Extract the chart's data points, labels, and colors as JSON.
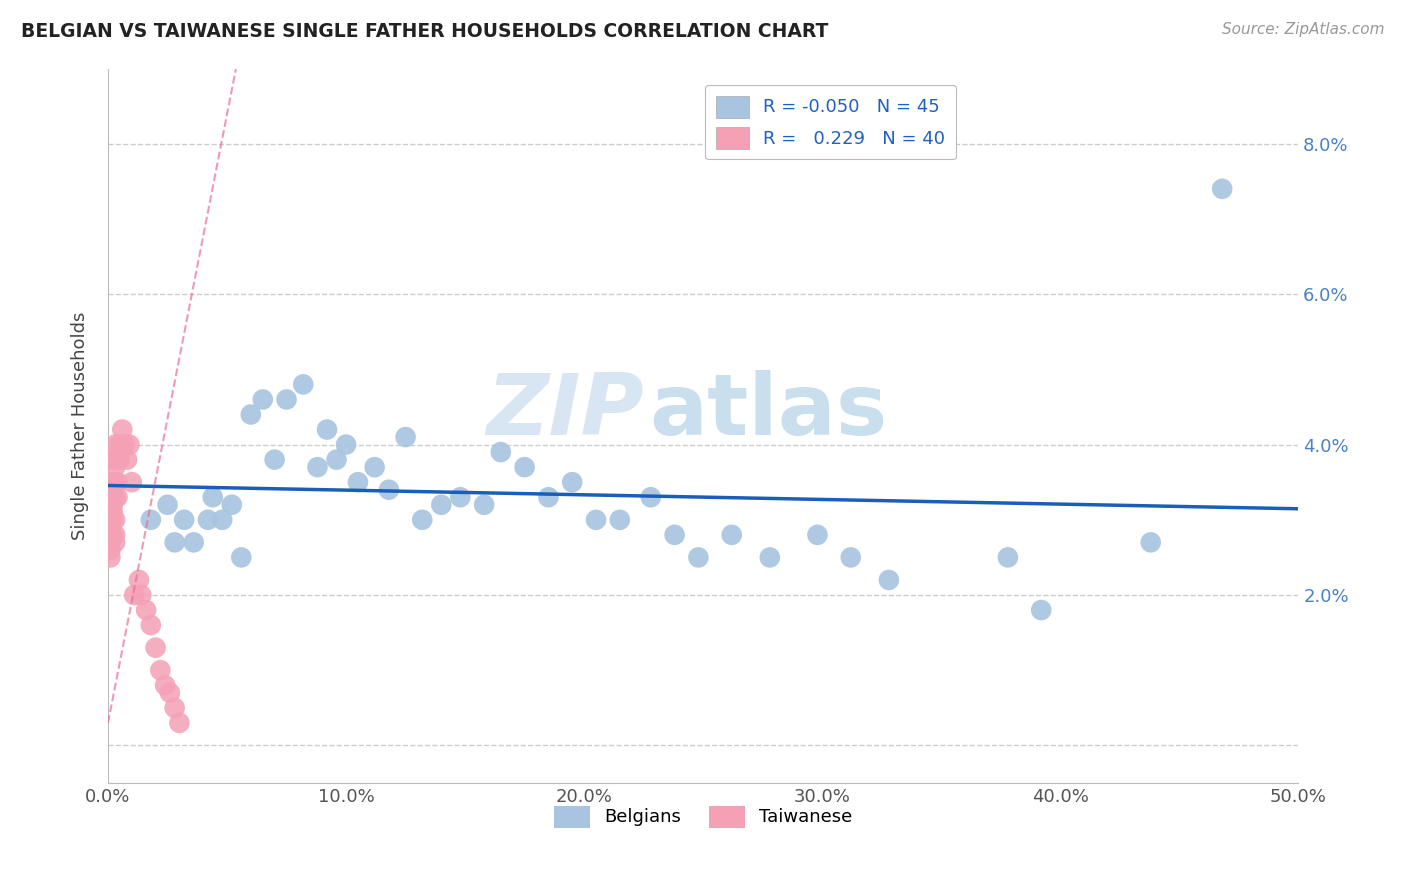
{
  "title": "BELGIAN VS TAIWANESE SINGLE FATHER HOUSEHOLDS CORRELATION CHART",
  "source": "Source: ZipAtlas.com",
  "ylabel": "Single Father Households",
  "xlim": [
    0.0,
    0.5
  ],
  "ylim": [
    -0.005,
    0.09
  ],
  "xticks": [
    0.0,
    0.1,
    0.2,
    0.3,
    0.4,
    0.5
  ],
  "xtick_labels": [
    "0.0%",
    "10.0%",
    "20.0%",
    "30.0%",
    "40.0%",
    "50.0%"
  ],
  "yticks": [
    0.0,
    0.02,
    0.04,
    0.06,
    0.08
  ],
  "ytick_labels_right": [
    "",
    "2.0%",
    "4.0%",
    "6.0%",
    "8.0%"
  ],
  "legend_R_blue": "-0.050",
  "legend_N_blue": "45",
  "legend_R_pink": "0.229",
  "legend_N_pink": "40",
  "blue_color": "#a8c4e0",
  "pink_color": "#f4a0b5",
  "trend_blue_color": "#1a5eb8",
  "trend_pink_color": "#e87090",
  "watermark_zip": "ZIP",
  "watermark_atlas": "atlas",
  "background_color": "#ffffff",
  "belgians_x": [
    0.018,
    0.025,
    0.028,
    0.032,
    0.036,
    0.042,
    0.044,
    0.048,
    0.052,
    0.056,
    0.06,
    0.065,
    0.07,
    0.075,
    0.082,
    0.088,
    0.092,
    0.096,
    0.1,
    0.105,
    0.112,
    0.118,
    0.125,
    0.132,
    0.14,
    0.148,
    0.158,
    0.165,
    0.175,
    0.185,
    0.195,
    0.205,
    0.215,
    0.228,
    0.238,
    0.248,
    0.262,
    0.278,
    0.298,
    0.312,
    0.328,
    0.378,
    0.392,
    0.438,
    0.468
  ],
  "belgians_y": [
    0.03,
    0.032,
    0.027,
    0.03,
    0.027,
    0.03,
    0.033,
    0.03,
    0.032,
    0.025,
    0.044,
    0.046,
    0.038,
    0.046,
    0.048,
    0.037,
    0.042,
    0.038,
    0.04,
    0.035,
    0.037,
    0.034,
    0.041,
    0.03,
    0.032,
    0.033,
    0.032,
    0.039,
    0.037,
    0.033,
    0.035,
    0.03,
    0.03,
    0.033,
    0.028,
    0.025,
    0.028,
    0.025,
    0.028,
    0.025,
    0.022,
    0.025,
    0.018,
    0.027,
    0.074
  ],
  "taiwanese_x": [
    0.001,
    0.001,
    0.001,
    0.001,
    0.001,
    0.002,
    0.002,
    0.002,
    0.002,
    0.002,
    0.002,
    0.003,
    0.003,
    0.003,
    0.003,
    0.003,
    0.003,
    0.003,
    0.003,
    0.004,
    0.004,
    0.004,
    0.005,
    0.005,
    0.006,
    0.007,
    0.008,
    0.009,
    0.01,
    0.011,
    0.013,
    0.014,
    0.016,
    0.018,
    0.02,
    0.022,
    0.024,
    0.026,
    0.028,
    0.03
  ],
  "taiwanese_y": [
    0.025,
    0.026,
    0.027,
    0.028,
    0.03,
    0.031,
    0.028,
    0.03,
    0.032,
    0.035,
    0.038,
    0.033,
    0.035,
    0.037,
    0.038,
    0.04,
    0.03,
    0.028,
    0.027,
    0.033,
    0.035,
    0.038,
    0.038,
    0.04,
    0.042,
    0.04,
    0.038,
    0.04,
    0.035,
    0.02,
    0.022,
    0.02,
    0.018,
    0.016,
    0.013,
    0.01,
    0.008,
    0.007,
    0.005,
    0.003
  ],
  "pink_trend_x": [
    0.0,
    0.055
  ],
  "pink_trend_y_start": 0.003,
  "pink_trend_y_end": 0.092
}
